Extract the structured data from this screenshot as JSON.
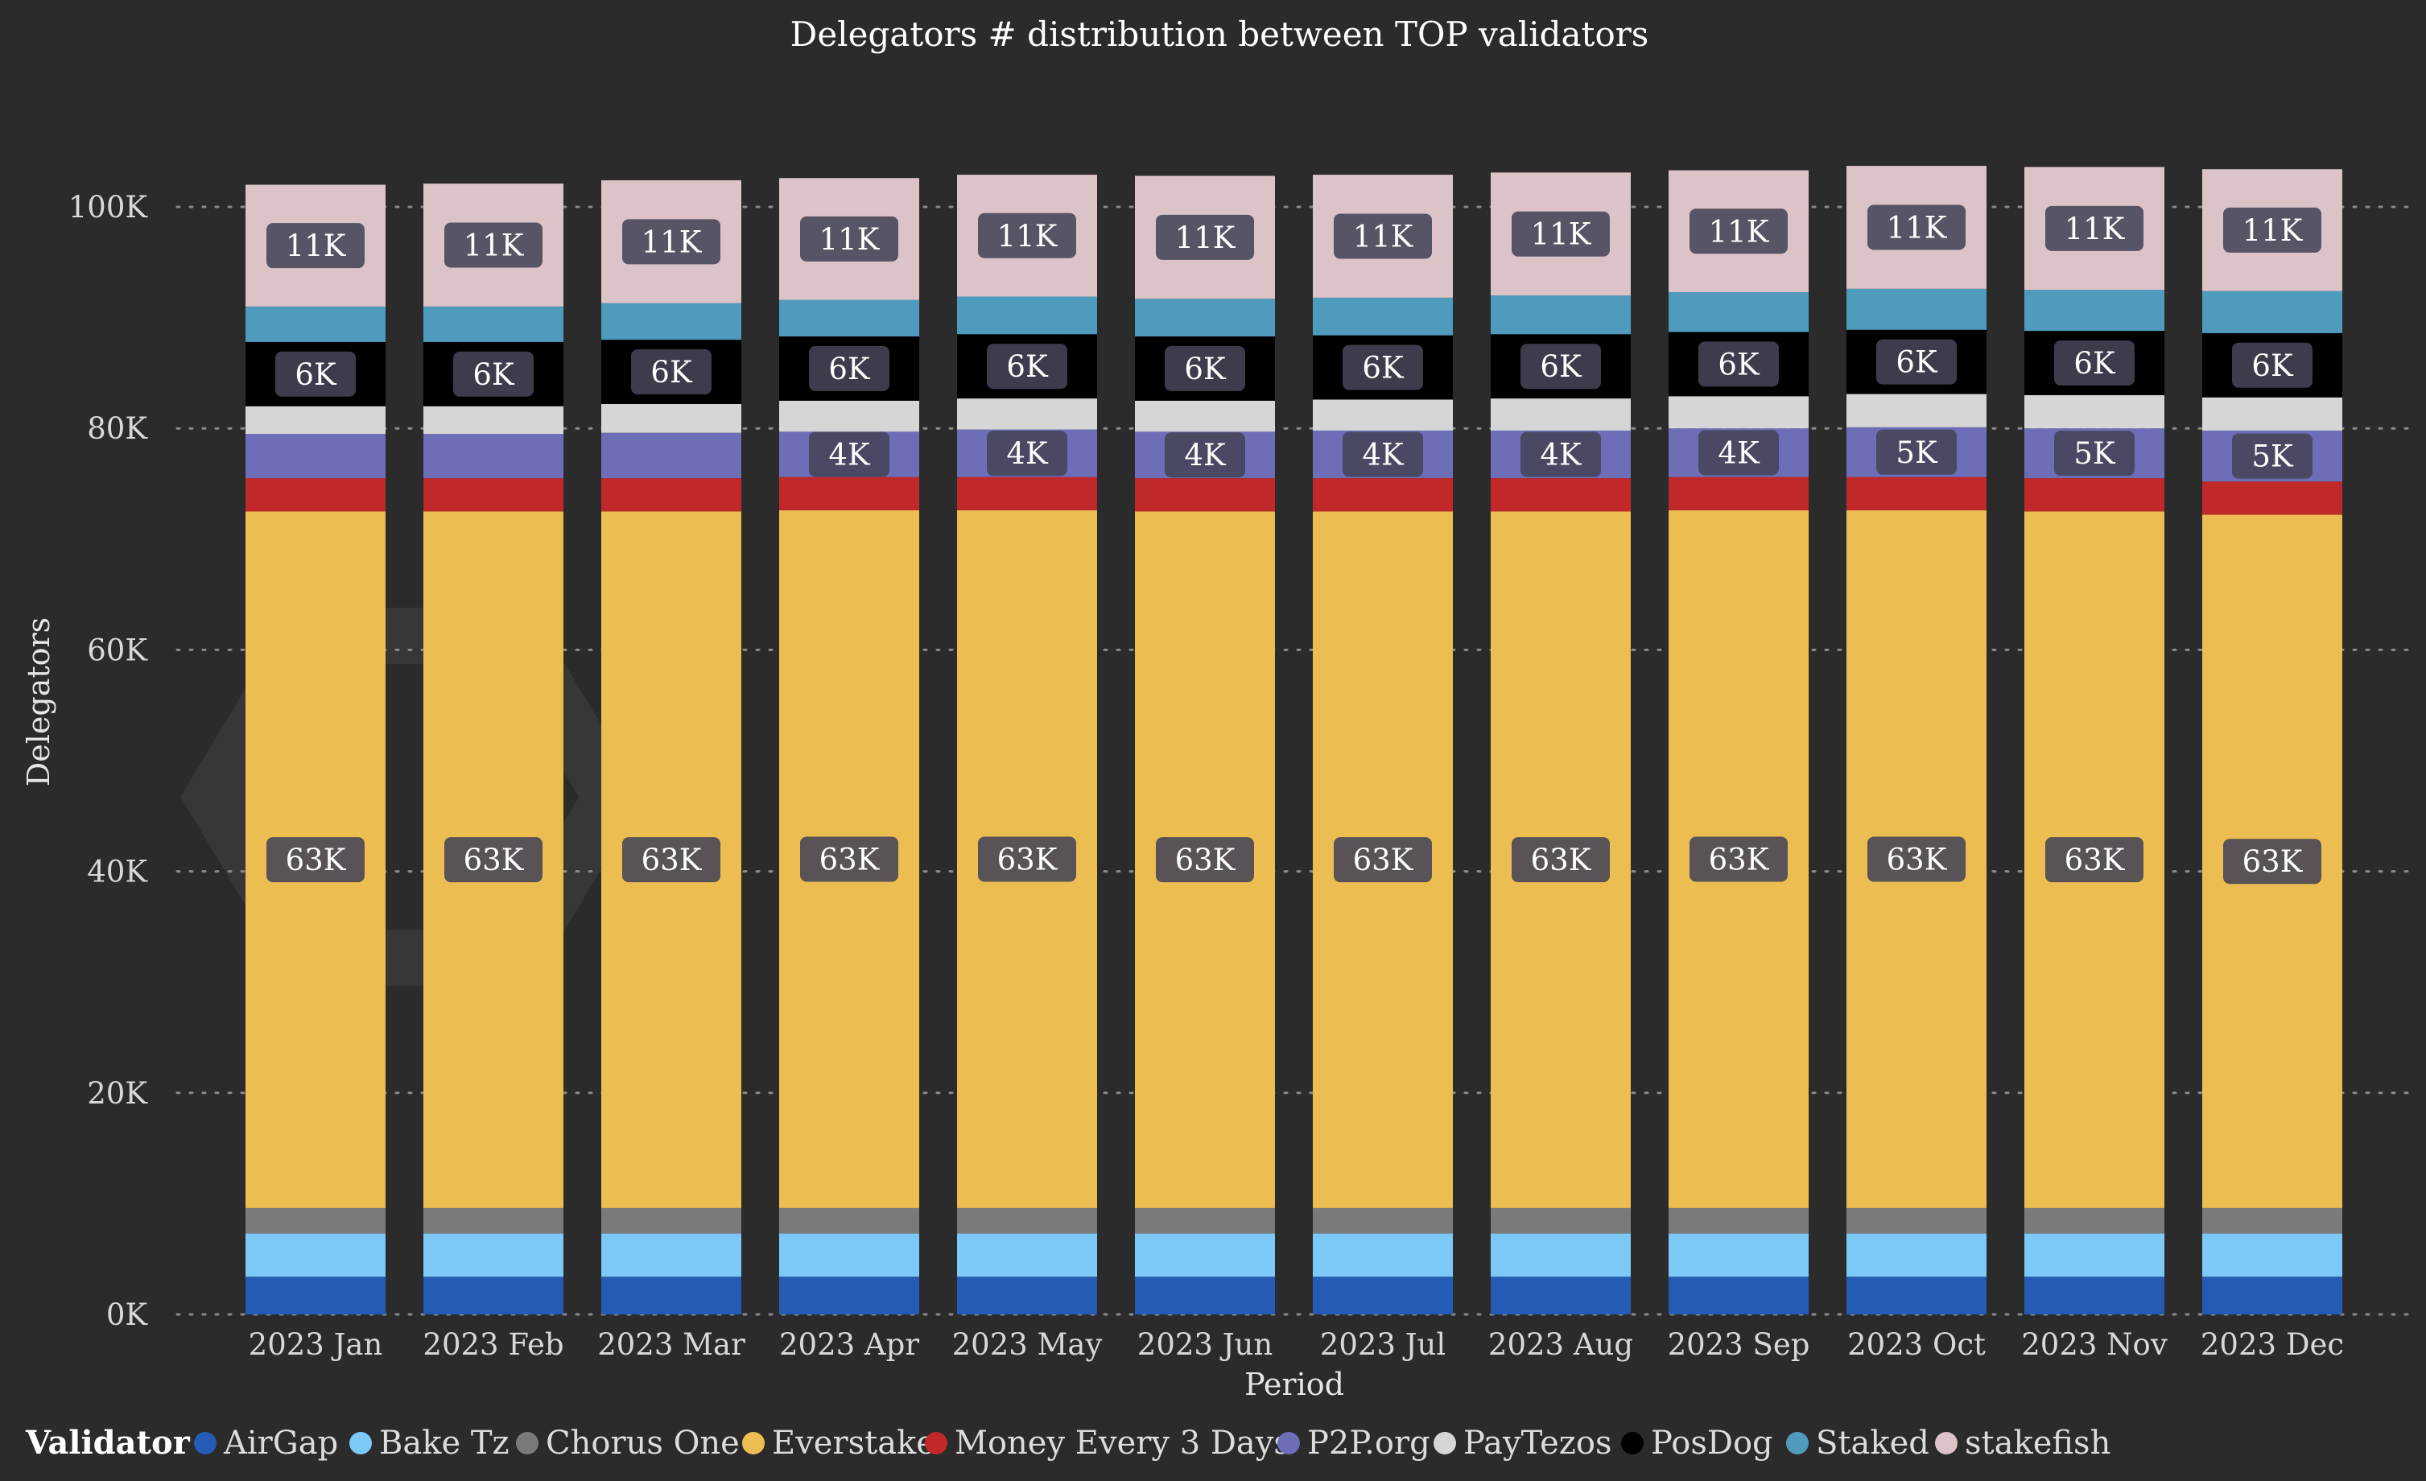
{
  "chart_data": {
    "type": "bar",
    "stacked": true,
    "title": "Delegators # distribution between TOP validators",
    "xlabel": "Period",
    "ylabel": "Delegators",
    "ylim": [
      0,
      100000
    ],
    "yticks": [
      {
        "value": 0,
        "label": "0K"
      },
      {
        "value": 20000,
        "label": "20K"
      },
      {
        "value": 40000,
        "label": "40K"
      },
      {
        "value": 60000,
        "label": "60K"
      },
      {
        "value": 80000,
        "label": "80K"
      },
      {
        "value": 100000,
        "label": "100K"
      }
    ],
    "grid": true,
    "legend_title": "Validator",
    "legend_position": "bottom",
    "categories": [
      "2023 Jan",
      "2023 Feb",
      "2023 Mar",
      "2023 Apr",
      "2023 May",
      "2023 Jun",
      "2023 Jul",
      "2023 Aug",
      "2023 Sep",
      "2023 Oct",
      "2023 Nov",
      "2023 Dec"
    ],
    "series": [
      {
        "name": "AirGap",
        "color": "#245bb5",
        "values": [
          3400,
          3400,
          3400,
          3400,
          3400,
          3400,
          3400,
          3400,
          3400,
          3400,
          3400,
          3400
        ],
        "labels": []
      },
      {
        "name": "Bake Tz",
        "color": "#7cc8f7",
        "values": [
          3900,
          3900,
          3900,
          3900,
          3900,
          3900,
          3900,
          3900,
          3900,
          3900,
          3900,
          3900
        ],
        "labels": []
      },
      {
        "name": "Chorus One",
        "color": "#7a7a7a",
        "values": [
          2300,
          2300,
          2300,
          2300,
          2300,
          2300,
          2300,
          2300,
          2300,
          2300,
          2300,
          2300
        ],
        "labels": []
      },
      {
        "name": "Everstake",
        "color": "#ecbe51",
        "values": [
          62900,
          62900,
          62900,
          63000,
          63000,
          62900,
          62900,
          62900,
          63000,
          63000,
          62900,
          62600
        ],
        "labels": [
          "63K",
          "63K",
          "63K",
          "63K",
          "63K",
          "63K",
          "63K",
          "63K",
          "63K",
          "63K",
          "63K",
          "63K"
        ]
      },
      {
        "name": "Money Every 3 Days",
        "color": "#c0282a",
        "values": [
          3000,
          3000,
          3000,
          3000,
          3000,
          3000,
          3000,
          3000,
          3000,
          3000,
          3000,
          3000
        ],
        "labels": []
      },
      {
        "name": "P2P.org",
        "color": "#6e6eb8",
        "values": [
          4000,
          4000,
          4100,
          4100,
          4300,
          4200,
          4300,
          4300,
          4400,
          4500,
          4500,
          4600
        ],
        "labels": [
          "",
          "",
          "",
          "4K",
          "4K",
          "4K",
          "4K",
          "4K",
          "4K",
          "5K",
          "5K",
          "5K"
        ]
      },
      {
        "name": "PayTezos",
        "color": "#d6d6d6",
        "values": [
          2500,
          2500,
          2600,
          2800,
          2800,
          2800,
          2800,
          2900,
          2900,
          3000,
          3000,
          3000
        ],
        "labels": []
      },
      {
        "name": "PosDog",
        "color": "#000000",
        "values": [
          5800,
          5800,
          5800,
          5800,
          5800,
          5800,
          5800,
          5800,
          5800,
          5800,
          5800,
          5800
        ],
        "labels": [
          "6K",
          "6K",
          "6K",
          "6K",
          "6K",
          "6K",
          "6K",
          "6K",
          "6K",
          "6K",
          "6K",
          "6K"
        ]
      },
      {
        "name": "Staked",
        "color": "#4f9bbd",
        "values": [
          3200,
          3200,
          3300,
          3300,
          3400,
          3400,
          3400,
          3500,
          3600,
          3700,
          3700,
          3800
        ],
        "labels": []
      },
      {
        "name": "stakefish",
        "color": "#dcc3c8",
        "values": [
          11000,
          11100,
          11100,
          11000,
          11000,
          11100,
          11100,
          11100,
          11000,
          11100,
          11100,
          11000
        ],
        "labels": [
          "11K",
          "11K",
          "11K",
          "11K",
          "11K",
          "11K",
          "11K",
          "11K",
          "11K",
          "11K",
          "11K",
          "11K"
        ]
      }
    ]
  }
}
